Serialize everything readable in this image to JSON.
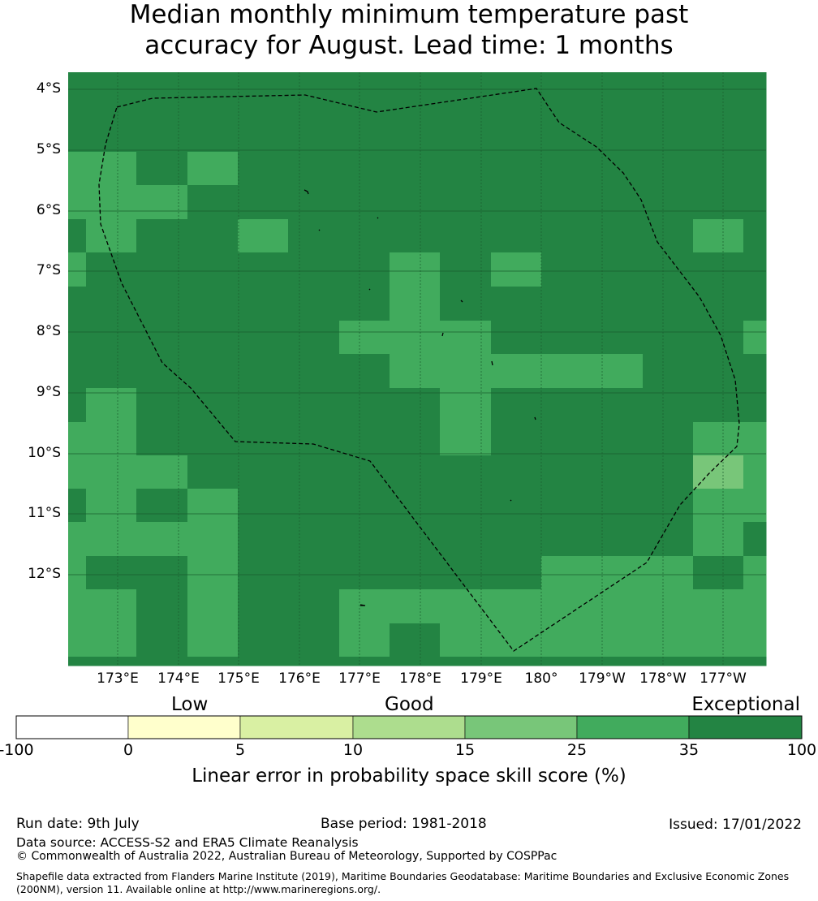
{
  "title": "Median monthly minimum temperature past\naccuracy for August. Lead time: 1 months",
  "map": {
    "lat_labels": [
      "4°S",
      "5°S",
      "6°S",
      "7°S",
      "8°S",
      "9°S",
      "10°S",
      "11°S",
      "12°S"
    ],
    "lon_labels": [
      "173°E",
      "174°E",
      "175°E",
      "176°E",
      "177°E",
      "178°E",
      "179°E",
      "180°",
      "179°W",
      "178°W",
      "177°W"
    ],
    "grid_default_class": 6,
    "colors": [
      "#ffffff",
      "#ffffcc",
      "#d9f0a3",
      "#addd8e",
      "#78c679",
      "#41ab5d",
      "#238443"
    ],
    "skill_cells": [
      {
        "row": 3,
        "col": 0,
        "cls": 5
      },
      {
        "row": 3,
        "col": 1,
        "cls": 5
      },
      {
        "row": 3,
        "col": 3,
        "cls": 5
      },
      {
        "row": 4,
        "col": 0,
        "cls": 5
      },
      {
        "row": 4,
        "col": 1,
        "cls": 5
      },
      {
        "row": 4,
        "col": 2,
        "cls": 5
      },
      {
        "row": 5,
        "col": 1,
        "cls": 5
      },
      {
        "row": 5,
        "col": 4,
        "cls": 5
      },
      {
        "row": 5,
        "col": 13,
        "cls": 5
      },
      {
        "row": 6,
        "col": 0,
        "cls": 5
      },
      {
        "row": 6,
        "col": 7,
        "cls": 5
      },
      {
        "row": 6,
        "col": 9,
        "cls": 5
      },
      {
        "row": 7,
        "col": 7,
        "cls": 5
      },
      {
        "row": 8,
        "col": 6,
        "cls": 5
      },
      {
        "row": 8,
        "col": 7,
        "cls": 5
      },
      {
        "row": 8,
        "col": 8,
        "cls": 5
      },
      {
        "row": 8,
        "col": 14,
        "cls": 5
      },
      {
        "row": 9,
        "col": 7,
        "cls": 5
      },
      {
        "row": 9,
        "col": 8,
        "cls": 5
      },
      {
        "row": 9,
        "col": 9,
        "cls": 5
      },
      {
        "row": 9,
        "col": 10,
        "cls": 5
      },
      {
        "row": 9,
        "col": 11,
        "cls": 5
      },
      {
        "row": 10,
        "col": 1,
        "cls": 5
      },
      {
        "row": 10,
        "col": 8,
        "cls": 5
      },
      {
        "row": 11,
        "col": 0,
        "cls": 5
      },
      {
        "row": 11,
        "col": 1,
        "cls": 5
      },
      {
        "row": 11,
        "col": 8,
        "cls": 5
      },
      {
        "row": 11,
        "col": 13,
        "cls": 5
      },
      {
        "row": 11,
        "col": 14,
        "cls": 5
      },
      {
        "row": 12,
        "col": 0,
        "cls": 5
      },
      {
        "row": 12,
        "col": 1,
        "cls": 5
      },
      {
        "row": 12,
        "col": 2,
        "cls": 5
      },
      {
        "row": 12,
        "col": 13,
        "cls": 4
      },
      {
        "row": 12,
        "col": 14,
        "cls": 5
      },
      {
        "row": 13,
        "col": 1,
        "cls": 5
      },
      {
        "row": 13,
        "col": 3,
        "cls": 5
      },
      {
        "row": 13,
        "col": 13,
        "cls": 5
      },
      {
        "row": 13,
        "col": 14,
        "cls": 5
      },
      {
        "row": 14,
        "col": 0,
        "cls": 5
      },
      {
        "row": 14,
        "col": 1,
        "cls": 5
      },
      {
        "row": 14,
        "col": 2,
        "cls": 5
      },
      {
        "row": 14,
        "col": 3,
        "cls": 5
      },
      {
        "row": 14,
        "col": 13,
        "cls": 5
      },
      {
        "row": 15,
        "col": 0,
        "cls": 5
      },
      {
        "row": 15,
        "col": 3,
        "cls": 5
      },
      {
        "row": 15,
        "col": 10,
        "cls": 5
      },
      {
        "row": 15,
        "col": 11,
        "cls": 5
      },
      {
        "row": 15,
        "col": 12,
        "cls": 5
      },
      {
        "row": 15,
        "col": 14,
        "cls": 5
      },
      {
        "row": 16,
        "col": 0,
        "cls": 5
      },
      {
        "row": 16,
        "col": 1,
        "cls": 5
      },
      {
        "row": 16,
        "col": 3,
        "cls": 5
      },
      {
        "row": 16,
        "col": 6,
        "cls": 5
      },
      {
        "row": 16,
        "col": 7,
        "cls": 5
      },
      {
        "row": 16,
        "col": 8,
        "cls": 5
      },
      {
        "row": 16,
        "col": 9,
        "cls": 5
      },
      {
        "row": 16,
        "col": 10,
        "cls": 5
      },
      {
        "row": 16,
        "col": 11,
        "cls": 5
      },
      {
        "row": 16,
        "col": 12,
        "cls": 5
      },
      {
        "row": 16,
        "col": 13,
        "cls": 5
      },
      {
        "row": 16,
        "col": 14,
        "cls": 5
      },
      {
        "row": 17,
        "col": 0,
        "cls": 5
      },
      {
        "row": 17,
        "col": 1,
        "cls": 5
      },
      {
        "row": 17,
        "col": 3,
        "cls": 5
      },
      {
        "row": 17,
        "col": 6,
        "cls": 5
      },
      {
        "row": 17,
        "col": 8,
        "cls": 5
      },
      {
        "row": 17,
        "col": 9,
        "cls": 5
      },
      {
        "row": 17,
        "col": 10,
        "cls": 5
      },
      {
        "row": 17,
        "col": 11,
        "cls": 5
      },
      {
        "row": 17,
        "col": 12,
        "cls": 5
      },
      {
        "row": 17,
        "col": 13,
        "cls": 5
      },
      {
        "row": 17,
        "col": 14,
        "cls": 5
      }
    ]
  },
  "colorbar": {
    "categories": [
      "Low",
      "Good",
      "Exceptional"
    ],
    "ticks": [
      "-100",
      "0",
      "5",
      "10",
      "15",
      "25",
      "35",
      "100"
    ],
    "label": "Linear error in probability space skill score (%)"
  },
  "footer": {
    "run_date": "Run date: 9th July",
    "base_period": "Base period: 1981-2018",
    "issued": "Issued: 17/01/2022",
    "data_source": "Data source: ACCESS-S2 and ERA5 Climate Reanalysis",
    "copyright": "© Commonwealth of Australia 2022, Australian Bureau of Meteorology, Supported by COSPPac",
    "shapefile": "Shapefile data extracted from Flanders Marine Institute (2019), Maritime Boundaries Geodatabase: Maritime Boundaries and Exclusive Economic Zones (200NM), version 11. Available online at http://www.marineregions.org/."
  }
}
